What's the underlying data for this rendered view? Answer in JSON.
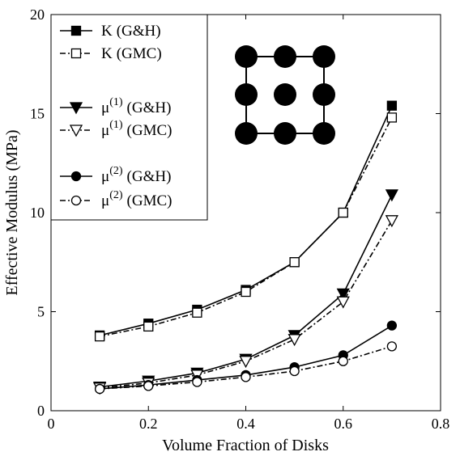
{
  "chart_data": {
    "type": "line",
    "xlabel": "Volume Fraction of Disks",
    "ylabel": "Effective Modulus (MPa)",
    "xlim": [
      0,
      0.8
    ],
    "ylim": [
      0,
      20
    ],
    "xticks": [
      "0",
      "0.2",
      "0.4",
      "0.6",
      "0.8"
    ],
    "yticks": [
      "0",
      "5",
      "10",
      "15",
      "20"
    ],
    "grid": false,
    "legend_position": "top-left",
    "x": [
      0.1,
      0.2,
      0.3,
      0.4,
      0.5,
      0.6,
      0.7
    ],
    "series": [
      {
        "name": "K (G&H)",
        "base": "K",
        "sup": "",
        "suffix": "(G&H)",
        "marker": "square-filled",
        "line": "solid",
        "values": [
          3.8,
          4.4,
          5.1,
          6.1,
          7.5,
          10.0,
          15.4
        ]
      },
      {
        "name": "K (GMC)",
        "base": "K",
        "sup": "",
        "suffix": "(GMC)",
        "marker": "square-open",
        "line": "dashdot",
        "values": [
          3.75,
          4.25,
          4.95,
          6.0,
          7.5,
          10.0,
          14.8
        ]
      },
      {
        "name": "μ(1) (G&H)",
        "base": "μ",
        "sup": "(1)",
        "suffix": "(G&H)",
        "marker": "triangle-down-filled",
        "line": "solid",
        "values": [
          1.2,
          1.5,
          1.9,
          2.6,
          3.8,
          5.9,
          10.9
        ]
      },
      {
        "name": "μ(1) (GMC)",
        "base": "μ",
        "sup": "(1)",
        "suffix": "(GMC)",
        "marker": "triangle-down-open",
        "line": "dashdot",
        "values": [
          1.15,
          1.4,
          1.8,
          2.5,
          3.6,
          5.5,
          9.6
        ]
      },
      {
        "name": "μ(2) (G&H)",
        "base": "μ",
        "sup": "(2)",
        "suffix": "(G&H)",
        "marker": "circle-filled",
        "line": "solid",
        "values": [
          1.1,
          1.3,
          1.55,
          1.8,
          2.2,
          2.8,
          4.3
        ]
      },
      {
        "name": "μ(2) (GMC)",
        "base": "μ",
        "sup": "(2)",
        "suffix": "(GMC)",
        "marker": "circle-open",
        "line": "dashdot",
        "values": [
          1.1,
          1.25,
          1.45,
          1.7,
          2.0,
          2.5,
          3.25
        ]
      }
    ]
  }
}
